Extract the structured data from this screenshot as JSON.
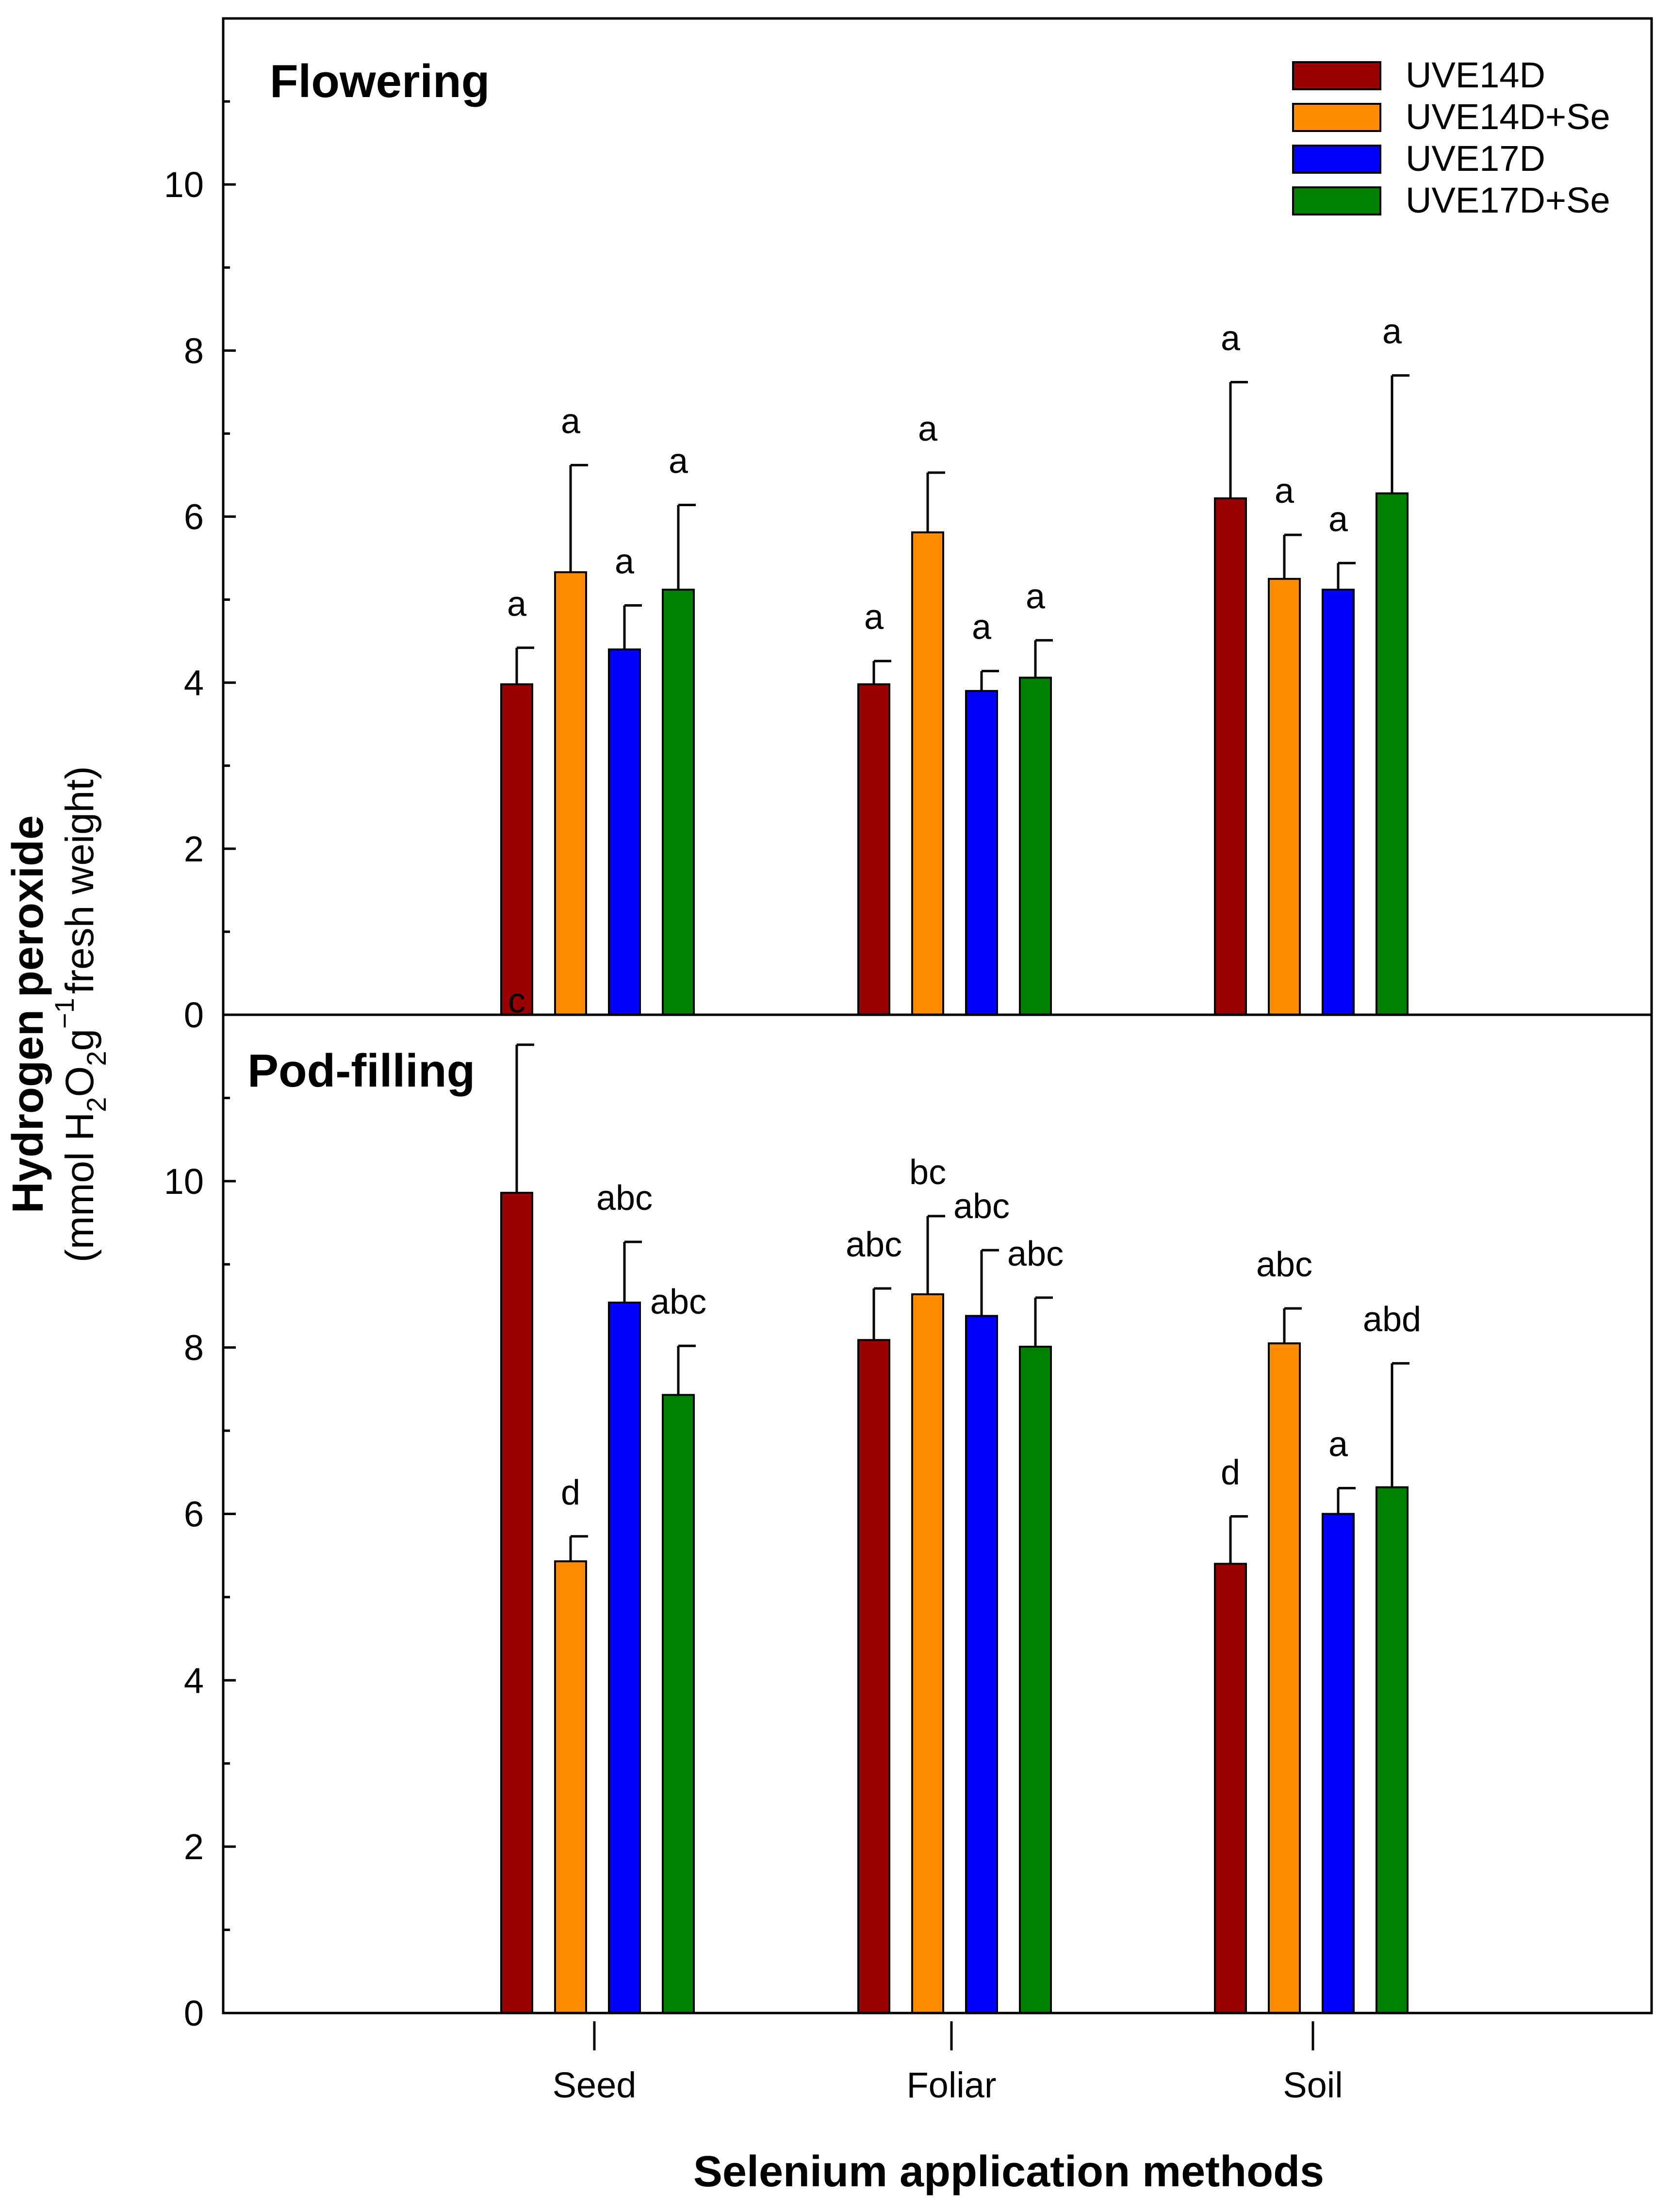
{
  "chart_data": {
    "type": "bar",
    "xlabel": "Selenium application methods",
    "ylabel": {
      "title": "Hydrogen peroxide",
      "unit_prefix": "(mmol H",
      "sub_2a": "2",
      "o": "O",
      "sub_2b": "2",
      "g": "g",
      "sup": "−1",
      "unit_suffix": "fresh weight)"
    },
    "categories": [
      "Seed",
      "Foliar",
      "Soil"
    ],
    "ylim": [
      0,
      12
    ],
    "yticks": [
      "0",
      "2",
      "4",
      "6",
      "8",
      "10"
    ],
    "legend": {
      "position": "top-right",
      "entries": [
        {
          "name": "UVE14D",
          "color": "#990000"
        },
        {
          "name": "UVE14D+Se",
          "color": "#FF8C00"
        },
        {
          "name": "UVE17D",
          "color": "#0000FF"
        },
        {
          "name": "UVE17D+Se",
          "color": "#008000"
        }
      ]
    },
    "panels": [
      {
        "title": "Flowering",
        "series": [
          {
            "name": "UVE14D",
            "values": [
              3.98,
              3.98,
              6.22
            ],
            "errors": [
              0.44,
              0.28,
              1.4
            ],
            "labels": [
              "a",
              "a",
              "a"
            ]
          },
          {
            "name": "UVE14D+Se",
            "values": [
              5.33,
              5.81,
              5.25
            ],
            "errors": [
              1.29,
              0.72,
              0.53
            ],
            "labels": [
              "a",
              "a",
              "a"
            ]
          },
          {
            "name": "UVE17D",
            "values": [
              4.4,
              3.9,
              5.12
            ],
            "errors": [
              0.53,
              0.24,
              0.32
            ],
            "labels": [
              "a",
              "a",
              "a"
            ]
          },
          {
            "name": "UVE17D+Se",
            "values": [
              5.12,
              4.06,
              6.28
            ],
            "errors": [
              1.02,
              0.45,
              1.42
            ],
            "labels": [
              "a",
              "a",
              "a"
            ]
          }
        ]
      },
      {
        "title": "Pod-filling",
        "series": [
          {
            "name": "UVE14D",
            "values": [
              9.86,
              8.09,
              5.4
            ],
            "errors": [
              1.78,
              0.62,
              0.57
            ],
            "labels": [
              "c",
              "abc",
              "d"
            ]
          },
          {
            "name": "UVE14D+Se",
            "values": [
              5.43,
              8.64,
              8.05
            ],
            "errors": [
              0.3,
              0.94,
              0.42
            ],
            "labels": [
              "d",
              "bc",
              "abc"
            ]
          },
          {
            "name": "UVE17D",
            "values": [
              8.54,
              8.38,
              6.0
            ],
            "errors": [
              0.73,
              0.79,
              0.31
            ],
            "labels": [
              "abc",
              "abc",
              "a"
            ]
          },
          {
            "name": "UVE17D+Se",
            "values": [
              7.43,
              8.01,
              6.32
            ],
            "errors": [
              0.59,
              0.59,
              1.49
            ],
            "labels": [
              "abc",
              "abc",
              "abd"
            ]
          }
        ]
      }
    ]
  }
}
